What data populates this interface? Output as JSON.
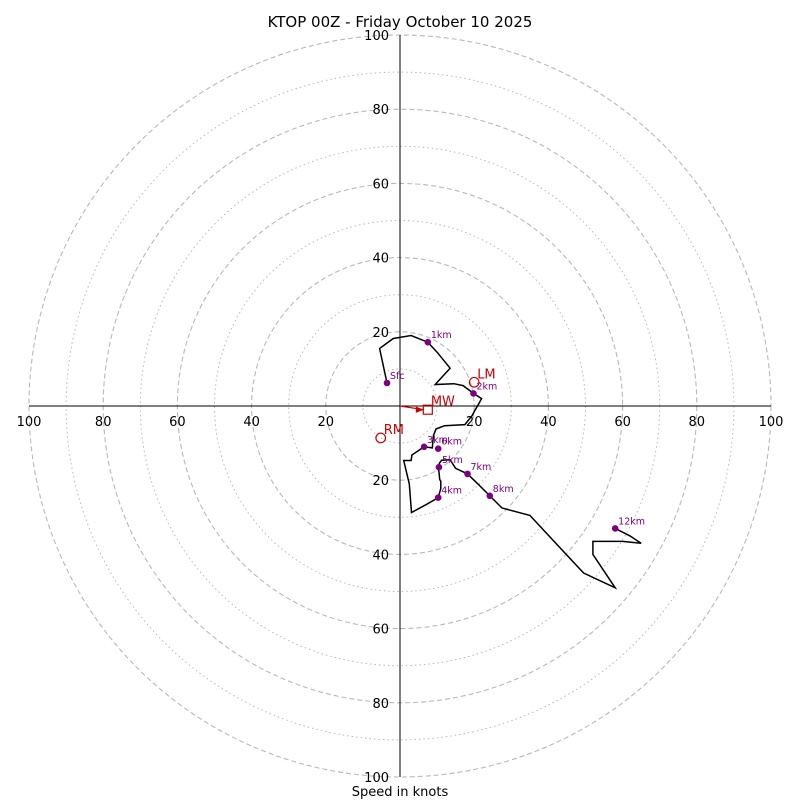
{
  "chart_data": {
    "type": "hodograph",
    "title": "KTOP 00Z - Friday October 10 2025",
    "xlabel": "Speed in knots",
    "range": 100,
    "ring_major": [
      20,
      40,
      60,
      80,
      100
    ],
    "ring_minor": [
      10,
      30,
      50,
      70,
      90
    ],
    "tick_labels": {
      "top": [
        "20",
        "40",
        "60",
        "80",
        "100"
      ],
      "bottom": [
        "20",
        "40",
        "60",
        "80",
        "100"
      ],
      "left": [
        "20",
        "40",
        "60",
        "80",
        "100"
      ],
      "right": [
        "20",
        "40",
        "60",
        "80",
        "100"
      ]
    },
    "trace_uv": [
      [
        -3.5,
        6.2
      ],
      [
        -5.5,
        15.5
      ],
      [
        -1.8,
        18.2
      ],
      [
        3,
        19
      ],
      [
        7.5,
        17.2
      ],
      [
        10,
        14.5
      ],
      [
        13.5,
        10.2
      ],
      [
        9.5,
        5.8
      ],
      [
        14.5,
        6
      ],
      [
        17,
        5.5
      ],
      [
        19.8,
        3.4
      ],
      [
        22,
        2
      ],
      [
        21,
        0.2
      ],
      [
        20,
        -1.5
      ],
      [
        19.5,
        -2.5
      ],
      [
        17.5,
        -5
      ],
      [
        12,
        -5.3
      ],
      [
        9.7,
        -6.2
      ],
      [
        9,
        -8
      ],
      [
        8.7,
        -11.3
      ],
      [
        6.5,
        -11
      ],
      [
        5,
        -12
      ],
      [
        3.2,
        -13.2
      ],
      [
        3,
        -14.7
      ],
      [
        1,
        -14.7
      ],
      [
        2.5,
        -21
      ],
      [
        3.1,
        -28.7
      ],
      [
        7,
        -26.6
      ],
      [
        10.3,
        -24.7
      ],
      [
        11,
        -22.2
      ],
      [
        11,
        -20.3
      ],
      [
        10.7,
        -19.8
      ],
      [
        10.5,
        -17.8
      ],
      [
        10.2,
        -16.5
      ],
      [
        10.7,
        -15.3
      ],
      [
        11.2,
        -14.6
      ],
      [
        13.5,
        -14.5
      ],
      [
        15,
        -16.8
      ],
      [
        16.5,
        -17.5
      ],
      [
        18.2,
        -18.3
      ],
      [
        21,
        -21
      ],
      [
        24,
        -24
      ],
      [
        27.5,
        -27.5
      ],
      [
        35,
        -29.5
      ],
      [
        42,
        -37
      ],
      [
        49.5,
        -45
      ],
      [
        58,
        -49
      ],
      [
        52,
        -40
      ],
      [
        52,
        -36.5
      ],
      [
        60,
        -36.5
      ],
      [
        65,
        -37
      ],
      [
        62,
        -35
      ],
      [
        58,
        -33
      ]
    ],
    "height_markers": [
      {
        "label": "Sfc",
        "u": -3.5,
        "v": 6.2
      },
      {
        "label": "1km",
        "u": 7.5,
        "v": 17.2
      },
      {
        "label": "2km",
        "u": 19.8,
        "v": 3.4
      },
      {
        "label": "3km",
        "u": 6.5,
        "v": -11
      },
      {
        "label": "4km",
        "u": 10.3,
        "v": -24.7
      },
      {
        "label": "5km",
        "u": 10.5,
        "v": -16.5
      },
      {
        "label": "6km",
        "u": 10.3,
        "v": -11.5
      },
      {
        "label": "7km",
        "u": 18.2,
        "v": -18.3
      },
      {
        "label": "8km",
        "u": 24.2,
        "v": -24.2
      },
      {
        "label": "12km",
        "u": 58,
        "v": -33
      }
    ],
    "storm_motion": [
      {
        "label": "LM",
        "u": 20,
        "v": 6.4,
        "marker": "circle"
      },
      {
        "label": "RM",
        "u": -5.2,
        "v": -8.6,
        "marker": "circle"
      },
      {
        "label": "MW",
        "u": 7.5,
        "v": -1,
        "marker": "square"
      }
    ],
    "colors": {
      "trace": "#000000",
      "marker": "#800080",
      "storm": "#cc0000",
      "grid": "#b8b8b8",
      "axis": "#000000"
    }
  }
}
